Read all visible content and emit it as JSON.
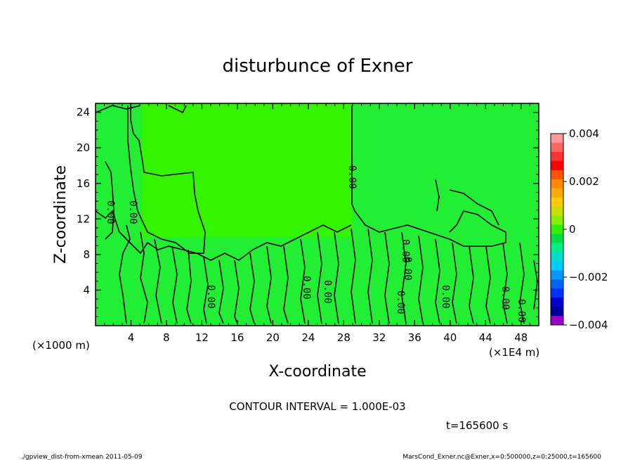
{
  "chart_data": {
    "type": "heatmap",
    "title": "disturbunce of Exner",
    "xlabel": "X-coordinate",
    "ylabel": "Z-coordinate",
    "x_ticks": [
      "4",
      "8",
      "12",
      "16",
      "20",
      "24",
      "28",
      "32",
      "36",
      "40",
      "44",
      "48"
    ],
    "y_ticks": [
      "4",
      "8",
      "12",
      "16",
      "20",
      "24"
    ],
    "xlim": [
      0,
      50
    ],
    "ylim": [
      0,
      25
    ],
    "x_unit": "(×1E4 m)",
    "y_unit": "(×1000 m)",
    "contour_labels": [
      "0.00",
      "0.00",
      "0.00",
      "0.00",
      "0.00",
      "0.00",
      "0.00",
      "0.00",
      "0.00",
      "0.00",
      "0.00",
      "0.00"
    ],
    "colorbar": {
      "min": -0.004,
      "max": 0.004,
      "tick_labels": [
        "0.004",
        "0.002",
        "0",
        "−0.002",
        "−0.004"
      ],
      "colors": [
        "#ff9999",
        "#ff6666",
        "#ff3333",
        "#ff0000",
        "#ff5500",
        "#ff8800",
        "#ffaa00",
        "#ffcc00",
        "#ccdd00",
        "#88ee00",
        "#33ee00",
        "#00dd44",
        "#00ee88",
        "#00ddcc",
        "#00ccff",
        "#0099ff",
        "#0066ff",
        "#0033ff",
        "#0000cc",
        "#000099",
        "#9900cc"
      ]
    },
    "regions": [
      {
        "name": "upper-left",
        "color": "#22ee33"
      },
      {
        "name": "upper-middle",
        "color": "#33f500"
      },
      {
        "name": "upper-right",
        "color": "#22ee33"
      },
      {
        "name": "lower-band",
        "color": "#22ee33"
      }
    ]
  },
  "annotations": {
    "contour_interval": "CONTOUR INTERVAL = 1.000E-03",
    "time": "t=165600 s",
    "footer_left": "./gpview_dist-from-xmean  2011-05-09",
    "footer_right": "MarsCond_Exner.nc@Exner,x=0:500000,z=0:25000,t=165600"
  }
}
